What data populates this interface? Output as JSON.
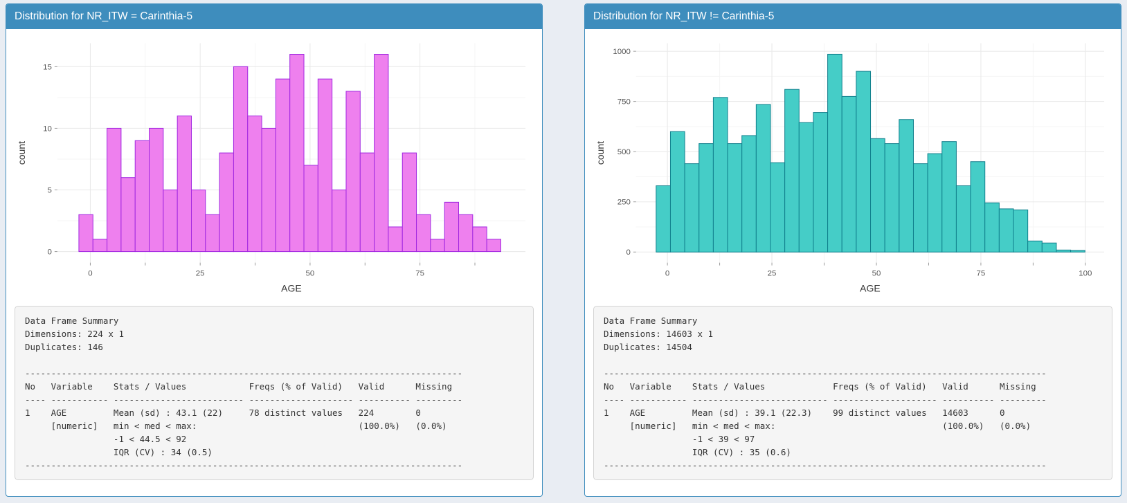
{
  "theme": {
    "page_background": "#e9edf3",
    "panel_header_background": "#3e8dbd",
    "panel_header_text": "#ffffff",
    "summary_background": "#f5f5f5",
    "grid_major": "#e8e8e8",
    "grid_minor": "#f5f5f5",
    "tick_label_color": "#555555",
    "axis_title_color": "#333333"
  },
  "panels": [
    {
      "title": "Distribution for NR_ITW = Carinthia-5",
      "summary": "Data Frame Summary\nDimensions: 224 x 1\nDuplicates: 146\n\n------------------------------------------------------------------------------------\nNo   Variable    Stats / Values            Freqs (% of Valid)   Valid      Missing\n---- ----------- ------------------------- -------------------- ---------- ---------\n1    AGE         Mean (sd) : 43.1 (22)     78 distinct values   224        0\n     [numeric]   min < med < max:                               (100.0%)   (0.0%)\n                 -1 < 44.5 < 92\n                 IQR (CV) : 34 (0.5)\n------------------------------------------------------------------------------------"
    },
    {
      "title": "Distribution for NR_ITW != Carinthia-5",
      "summary": "Data Frame Summary\nDimensions: 14603 x 1\nDuplicates: 14504\n\n-------------------------------------------------------------------------------------\nNo   Variable    Stats / Values             Freqs (% of Valid)   Valid      Missing\n---- ----------- -------------------------- -------------------- ---------- ---------\n1    AGE         Mean (sd) : 39.1 (22.3)    99 distinct values   14603      0\n     [numeric]   min < med < max:                                (100.0%)   (0.0%)\n                 -1 < 39 < 97\n                 IQR (CV) : 35 (0.6)\n-------------------------------------------------------------------------------------"
    }
  ],
  "chart_data": [
    {
      "type": "bar",
      "subtype": "histogram",
      "title": "Distribution for NR_ITW = Carinthia-5",
      "xlabel": "AGE",
      "ylabel": "count",
      "bin_start": -2.6,
      "bin_width": 3.2,
      "counts": [
        3,
        1,
        10,
        6,
        9,
        10,
        5,
        11,
        5,
        3,
        8,
        15,
        11,
        10,
        14,
        16,
        7,
        14,
        5,
        13,
        8,
        16,
        2,
        8,
        3,
        1,
        4,
        3,
        2,
        1
      ],
      "total_n": 224,
      "x_ticks": [
        0,
        25,
        50,
        75
      ],
      "x_minor": [
        12.5,
        37.5,
        62.5,
        87.5
      ],
      "y_ticks": [
        0,
        5,
        10,
        15
      ],
      "y_minor": [
        2.5,
        7.5,
        12.5
      ],
      "xlim": [
        -7.5,
        99
      ],
      "ylim": [
        -0.9,
        16.9
      ],
      "bar_fill": "#ee80ee",
      "bar_stroke": "#a127e0",
      "grid": true,
      "legend": false
    },
    {
      "type": "bar",
      "subtype": "histogram",
      "title": "Distribution for NR_ITW != Carinthia-5",
      "xlabel": "AGE",
      "ylabel": "count",
      "bin_start": -2.7,
      "bin_width": 3.42,
      "counts": [
        330,
        600,
        440,
        540,
        770,
        540,
        580,
        735,
        445,
        810,
        645,
        695,
        985,
        775,
        900,
        565,
        540,
        660,
        440,
        490,
        550,
        330,
        450,
        245,
        215,
        210,
        55,
        45,
        10,
        8
      ],
      "total_n": 14603,
      "x_ticks": [
        0,
        25,
        50,
        75,
        100
      ],
      "x_minor": [
        12.5,
        37.5,
        62.5,
        87.5
      ],
      "y_ticks": [
        0,
        250,
        500,
        750,
        1000
      ],
      "y_minor": [
        125,
        375,
        625,
        875
      ],
      "xlim": [
        -7.5,
        104.5
      ],
      "ylim": [
        -53,
        1040
      ],
      "bar_fill": "#45cdc7",
      "bar_stroke": "#107f8c",
      "grid": true,
      "legend": false
    }
  ]
}
